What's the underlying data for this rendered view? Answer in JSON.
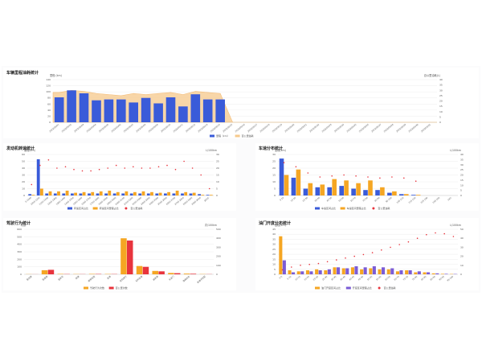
{
  "colors": {
    "blue": "#3a5bd9",
    "orange": "#f5a623",
    "red": "#e8343d",
    "purple": "#7b5cd6",
    "area": "#f6c98c",
    "grid": "#eeeeee",
    "text": "#555555"
  },
  "panels": {
    "vehicle": {
      "title": "车辆里程油耗统计",
      "y_left_unit": "里程 (km)",
      "y_right_unit": "百公里油耗(L)",
      "legend": [
        "里程（km）",
        "百公里油耗"
      ]
    },
    "engine": {
      "title": "发动机转速统计",
      "y_left_unit": "里程(km)",
      "y_right_unit": "L/100km",
      "legend": [
        "转速区间占比",
        "转速区间里程占比",
        "百公里油耗"
      ]
    },
    "speed": {
      "title": "车速分布统计",
      "y_left_unit": "里程(km)",
      "y_right_unit": "L/100km",
      "legend": [
        "车速区间占比",
        "车速区间里程占比",
        "百公里油耗"
      ]
    },
    "driving": {
      "title": "驾驶行为统计",
      "y_left_unit": "次数",
      "y_right_unit": "次/100km",
      "legend": [
        "驾驶行为次数",
        "百公里次数"
      ]
    },
    "throttle": {
      "title": "油门开度分布统计",
      "y_left_unit": "里程(km)",
      "y_right_unit": "L/100km",
      "legend": [
        "油门开度区间占比",
        "开度区间里程占比",
        "百公里油耗"
      ]
    }
  },
  "chart_data": [
    {
      "id": "vehicle",
      "type": "bar",
      "categories": [
        "2023/08/01",
        "2023/08/02",
        "2023/08/03",
        "2023/08/04",
        "2023/08/05",
        "2023/08/06",
        "2023/08/07",
        "2023/08/08",
        "2023/08/09",
        "2023/08/10",
        "2023/08/11",
        "2023/08/12",
        "2023/08/13",
        "2023/08/14",
        "2023/08/15",
        "2023/08/16",
        "2023/08/17",
        "2023/08/18",
        "2023/08/19",
        "2023/08/20",
        "2023/08/21",
        "2023/08/22",
        "2023/08/23",
        "2023/08/24",
        "2023/08/25",
        "2023/08/26",
        "2023/08/27",
        "2023/08/28",
        "2023/08/29",
        "2023/08/30",
        "2023/08/31"
      ],
      "series": [
        {
          "name": "里程（km）",
          "kind": "bar",
          "values": [
            82,
            105,
            95,
            72,
            75,
            75,
            65,
            80,
            62,
            82,
            52,
            92,
            75,
            75,
            0,
            0,
            0,
            0,
            0,
            0,
            0,
            0,
            0,
            0,
            0,
            0,
            0,
            0,
            0,
            0,
            0
          ]
        },
        {
          "name": "百公里油耗",
          "kind": "area",
          "values": [
            28,
            30,
            29,
            27,
            26,
            25,
            27,
            26,
            27,
            28,
            26,
            29,
            28,
            27,
            0,
            0,
            0,
            0,
            0,
            0,
            0,
            0,
            0,
            0,
            0,
            0,
            0,
            0,
            0,
            0,
            0
          ]
        }
      ],
      "ylim": [
        0,
        140
      ],
      "y2lim": [
        0,
        40
      ],
      "yticks": [
        0,
        20,
        40,
        60,
        80,
        100,
        120,
        140
      ],
      "y2ticks": [
        0,
        5,
        10,
        15,
        20,
        25,
        30,
        35,
        40
      ]
    },
    {
      "id": "engine",
      "type": "bar",
      "categories": [
        "0-1000",
        "1000-1100",
        "1100-1200",
        "1200-1300",
        "1300-1400",
        "1400-1500",
        "1500-1600",
        "1600-1700",
        "1700-1800",
        "1800-1900",
        "1900-2000",
        "2000-2100",
        "2100-2200",
        "2200-2300",
        "2300-2400",
        "2400-2500",
        "2500-2600",
        "2600-2700",
        "2700-2800",
        "2800-2900",
        "2900-3000",
        "3000-"
      ],
      "series": [
        {
          "name": "转速区间占比",
          "kind": "bar",
          "values": [
            2,
            53,
            3,
            3,
            3,
            3,
            3,
            3,
            3,
            3,
            3,
            3,
            3,
            3,
            3,
            3,
            3,
            3,
            3,
            3,
            2,
            1
          ]
        },
        {
          "name": "转速区间里程占比",
          "kind": "bar",
          "values": [
            1,
            10,
            6,
            6,
            7,
            4,
            5,
            5,
            6,
            7,
            5,
            6,
            5,
            6,
            5,
            4,
            5,
            7,
            5,
            4,
            1,
            1
          ]
        },
        {
          "name": "百公里油耗",
          "kind": "scatter",
          "values": [
            8,
            22,
            26,
            20,
            21,
            19,
            18,
            18,
            19,
            20,
            22,
            20,
            21,
            20,
            20,
            21,
            22,
            19,
            25,
            20,
            15,
            5
          ]
        }
      ],
      "ylim": [
        0,
        60
      ],
      "y2lim": [
        0,
        30
      ],
      "yticks": [
        0,
        10,
        20,
        30,
        40,
        50,
        60
      ],
      "y2ticks": [
        0,
        5,
        10,
        15,
        20,
        25,
        30
      ]
    },
    {
      "id": "speed",
      "type": "bar",
      "categories": [
        "0-10",
        "10-20",
        "20-30",
        "30-40",
        "40-50",
        "50-60",
        "60-70",
        "70-80",
        "80-90",
        "90-100",
        "100-110",
        "110-120",
        "120-130",
        "130-140",
        "140-"
      ],
      "series": [
        {
          "name": "车速区间占比",
          "kind": "bar",
          "values": [
            27,
            13,
            5,
            6,
            6,
            7,
            5,
            4,
            4,
            2,
            1,
            0.5,
            0,
            0,
            0
          ]
        },
        {
          "name": "车速区间里程占比",
          "kind": "bar",
          "values": [
            15,
            19,
            9,
            8,
            12,
            11,
            9,
            11,
            6,
            3,
            1,
            0.5,
            0,
            0,
            0
          ]
        },
        {
          "name": "百公里油耗",
          "kind": "scatter",
          "values": [
            32,
            28,
            22,
            18,
            19,
            20,
            19,
            18,
            17,
            18,
            17,
            14,
            0,
            0,
            0
          ]
        }
      ],
      "ylim": [
        0,
        30
      ],
      "y2lim": [
        0,
        40
      ],
      "yticks": [
        0,
        5,
        10,
        15,
        20,
        25,
        30
      ],
      "y2ticks": [
        0,
        5,
        10,
        15,
        20,
        25,
        30,
        35,
        40
      ]
    },
    {
      "id": "driving",
      "type": "bar",
      "categories": [
        "急加速",
        "急减速",
        "急转弯",
        "超速",
        "疲劳驾驶",
        "怠速",
        "空挡滑行",
        "长时怠速",
        "高转速",
        "大油门",
        "急踩刹车",
        "转速不匹配"
      ],
      "series": [
        {
          "name": "驾驶行为次数",
          "kind": "bar",
          "values": [
            2,
            55,
            5,
            3,
            5,
            4,
            480,
            110,
            45,
            18,
            10,
            3
          ]
        },
        {
          "name": "百公里次数",
          "kind": "bar",
          "values": [
            1,
            60,
            3,
            2,
            4,
            3,
            450,
            100,
            40,
            15,
            8,
            2
          ]
        }
      ],
      "ylim": [
        0,
        600
      ],
      "y2lim": [
        0,
        500
      ],
      "yticks": [
        0,
        100,
        200,
        300,
        400,
        500,
        600
      ],
      "y2ticks": [
        0,
        100,
        200,
        300,
        400,
        500
      ]
    },
    {
      "id": "throttle",
      "type": "bar",
      "categories": [
        "0-5",
        "5-10",
        "10-15",
        "15-20",
        "20-25",
        "25-30",
        "30-35",
        "35-40",
        "40-45",
        "45-50",
        "50-55",
        "55-60",
        "60-65",
        "65-70",
        "70-75",
        "75-80",
        "80-85",
        "85-90",
        "90-95",
        "95-100"
      ],
      "series": [
        {
          "name": "油门开度区间占比",
          "kind": "bar",
          "values": [
            38,
            4,
            3,
            4,
            5,
            4,
            7,
            6,
            7,
            5,
            6,
            5,
            5,
            3,
            4,
            2,
            2,
            1,
            0.5,
            0.3
          ]
        },
        {
          "name": "开度区间里程占比",
          "kind": "bar",
          "values": [
            14,
            2,
            3,
            3,
            4,
            5,
            7,
            6,
            8,
            7,
            8,
            7,
            6,
            4,
            4,
            3,
            2,
            1,
            0.5,
            0.3
          ]
        },
        {
          "name": "百公里油耗",
          "kind": "scatter",
          "values": [
            5,
            8,
            10,
            11,
            12,
            14,
            16,
            18,
            20,
            22,
            24,
            27,
            30,
            33,
            36,
            40,
            44,
            46,
            45,
            42
          ]
        }
      ],
      "ylim": [
        0,
        45
      ],
      "y2lim": [
        0,
        50
      ],
      "yticks": [
        0,
        5,
        10,
        15,
        20,
        25,
        30,
        35,
        40,
        45
      ],
      "y2ticks": [
        0,
        10,
        20,
        30,
        40,
        50
      ]
    }
  ]
}
